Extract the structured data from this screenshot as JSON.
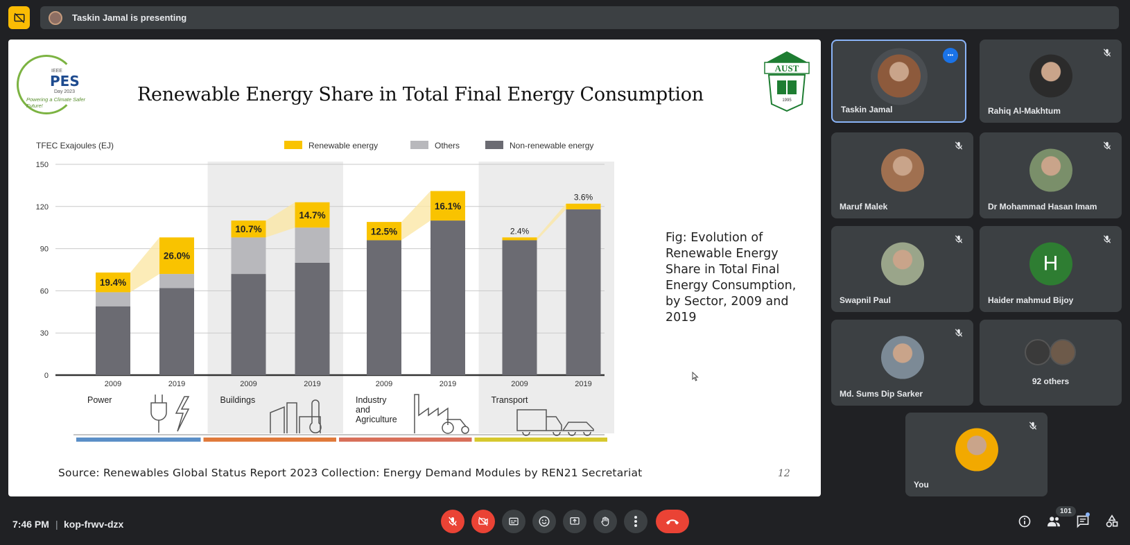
{
  "topbar": {
    "presenting_text": "Taskin Jamal is presenting"
  },
  "slide": {
    "title": "Renewable Energy Share in Total Final Energy Consumption",
    "pes_logo": {
      "ieee": "IEEE",
      "pes": "PES",
      "day": "Day 2023",
      "tagline": "Powering a Climate Safer Future!"
    },
    "aust_logo": {
      "text": "AUST",
      "year": "1995"
    },
    "fig_caption": "Fig: Evolution of Renewable Energy Share in Total Final Energy Consumption, by Sector, 2009 and 2019",
    "source": "Source: Renewables Global Status Report 2023 Collection: Energy Demand Modules by REN21 Secretariat",
    "page_number": "12"
  },
  "chart_data": {
    "type": "bar",
    "stacked": true,
    "ylabel": "TFEC Exajoules (EJ)",
    "ylim": [
      0,
      150
    ],
    "yticks": [
      0,
      30,
      60,
      90,
      120,
      150
    ],
    "legend": [
      "Renewable energy",
      "Others",
      "Non-renewable energy"
    ],
    "legend_position": "top",
    "colors": {
      "renewable": "#f9c300",
      "others": "#b8b8bc",
      "nonrenewable": "#6b6b72",
      "shade": "#ececec"
    },
    "sectors": [
      {
        "name": "Power",
        "band_color": "#5b8fc7",
        "shaded": false,
        "bars": [
          {
            "year": "2009",
            "nonrenewable": 49,
            "others": 10,
            "renewable": 14,
            "share": "19.4%"
          },
          {
            "year": "2019",
            "nonrenewable": 62,
            "others": 10,
            "renewable": 26,
            "share": "26.0%"
          }
        ]
      },
      {
        "name": "Buildings",
        "band_color": "#e07a3b",
        "shaded": true,
        "bars": [
          {
            "year": "2009",
            "nonrenewable": 72,
            "others": 26,
            "renewable": 12,
            "share": "10.7%"
          },
          {
            "year": "2019",
            "nonrenewable": 80,
            "others": 25,
            "renewable": 18,
            "share": "14.7%"
          }
        ]
      },
      {
        "name": "Industry and Agriculture",
        "band_color": "#d8705a",
        "shaded": false,
        "bars": [
          {
            "year": "2009",
            "nonrenewable": 96,
            "others": 0,
            "renewable": 13,
            "share": "12.5%"
          },
          {
            "year": "2019",
            "nonrenewable": 110,
            "others": 0,
            "renewable": 21,
            "share": "16.1%"
          }
        ]
      },
      {
        "name": "Transport",
        "band_color": "#d6c82e",
        "shaded": true,
        "bars": [
          {
            "year": "2009",
            "nonrenewable": 96,
            "others": 0,
            "renewable": 2,
            "share": "2.4%"
          },
          {
            "year": "2019",
            "nonrenewable": 118,
            "others": 0,
            "renewable": 4,
            "share": "3.6%"
          }
        ]
      }
    ]
  },
  "participants": [
    {
      "name": "Taskin Jamal",
      "active": true,
      "avatar_color": "#8d5a3c"
    },
    {
      "name": "Rahiq Al-Makhtum",
      "avatar_color": "#2b2b2b"
    },
    {
      "name": "Maruf Malek",
      "avatar_color": "#a07050"
    },
    {
      "name": "Dr Mohammad Hasan Imam",
      "avatar_color": "#7a8f6a"
    },
    {
      "name": "Swapnil Paul",
      "avatar_color": "#9aa58a"
    },
    {
      "name": "Haider mahmud Bijoy",
      "letter": "H"
    },
    {
      "name": "Md. Sums Dip Sarker",
      "avatar_color": "#7c8a96"
    },
    {
      "others_label": "92 others"
    },
    {
      "name": "You",
      "avatar_color": "#f2a900"
    }
  ],
  "bottombar": {
    "time": "7:46 PM",
    "separator": "|",
    "meeting_code": "kop-frwv-dzx",
    "participant_count": "101"
  }
}
